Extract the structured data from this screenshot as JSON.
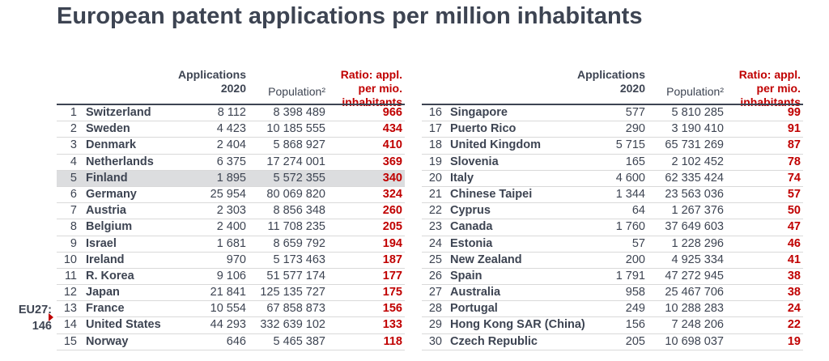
{
  "title": "European patent applications per million inhabitants",
  "headers": {
    "applications": "Applications",
    "year": "2020",
    "population": "Population²",
    "ratio_line1": "Ratio: appl.",
    "ratio_line2": "per mio.",
    "ratio_line3": "inhabitants"
  },
  "eu27": {
    "label": "EU27:",
    "value": "146"
  },
  "colors": {
    "accent": "#c00000",
    "text": "#3d4452",
    "highlight": "#dcdddf"
  },
  "left_rows": [
    {
      "rank": "1",
      "country": "Switzerland",
      "applications": "8 112",
      "population": "8 398 489",
      "ratio": "966"
    },
    {
      "rank": "2",
      "country": "Sweden",
      "applications": "4 423",
      "population": "10 185 555",
      "ratio": "434"
    },
    {
      "rank": "3",
      "country": "Denmark",
      "applications": "2 404",
      "population": "5 868 927",
      "ratio": "410"
    },
    {
      "rank": "4",
      "country": "Netherlands",
      "applications": "6 375",
      "population": "17 274 001",
      "ratio": "369"
    },
    {
      "rank": "5",
      "country": "Finland",
      "applications": "1 895",
      "population": "5 572 355",
      "ratio": "340",
      "highlight": true
    },
    {
      "rank": "6",
      "country": "Germany",
      "applications": "25 954",
      "population": "80 069 820",
      "ratio": "324"
    },
    {
      "rank": "7",
      "country": "Austria",
      "applications": "2 303",
      "population": "8 856 348",
      "ratio": "260"
    },
    {
      "rank": "8",
      "country": "Belgium",
      "applications": "2 400",
      "population": "11 708 235",
      "ratio": "205"
    },
    {
      "rank": "9",
      "country": "Israel",
      "applications": "1 681",
      "population": "8 659 792",
      "ratio": "194"
    },
    {
      "rank": "10",
      "country": "Ireland",
      "applications": "970",
      "population": "5 173 463",
      "ratio": "187"
    },
    {
      "rank": "11",
      "country": "R. Korea",
      "applications": "9 106",
      "population": "51 577 174",
      "ratio": "177"
    },
    {
      "rank": "12",
      "country": "Japan",
      "applications": "21 841",
      "population": "125 135 727",
      "ratio": "175"
    },
    {
      "rank": "13",
      "country": "France",
      "applications": "10 554",
      "population": "67 858 873",
      "ratio": "156"
    },
    {
      "rank": "14",
      "country": "United States",
      "applications": "44 293",
      "population": "332 639 102",
      "ratio": "133"
    },
    {
      "rank": "15",
      "country": "Norway",
      "applications": "646",
      "population": "5 465 387",
      "ratio": "118"
    }
  ],
  "right_rows": [
    {
      "rank": "16",
      "country": "Singapore",
      "applications": "577",
      "population": "5 810 285",
      "ratio": "99"
    },
    {
      "rank": "17",
      "country": "Puerto Rico",
      "applications": "290",
      "population": "3 190 410",
      "ratio": "91"
    },
    {
      "rank": "18",
      "country": "United Kingdom",
      "applications": "5 715",
      "population": "65 731 269",
      "ratio": "87"
    },
    {
      "rank": "19",
      "country": "Slovenia",
      "applications": "165",
      "population": "2 102 452",
      "ratio": "78"
    },
    {
      "rank": "20",
      "country": "Italy",
      "applications": "4 600",
      "population": "62 335 424",
      "ratio": "74"
    },
    {
      "rank": "21",
      "country": "Chinese Taipei",
      "applications": "1 344",
      "population": "23 563 036",
      "ratio": "57"
    },
    {
      "rank": "22",
      "country": "Cyprus",
      "applications": "64",
      "population": "1 267 376",
      "ratio": "50"
    },
    {
      "rank": "23",
      "country": "Canada",
      "applications": "1 760",
      "population": "37 649 603",
      "ratio": "47"
    },
    {
      "rank": "24",
      "country": "Estonia",
      "applications": "57",
      "population": "1 228 296",
      "ratio": "46"
    },
    {
      "rank": "25",
      "country": "New Zealand",
      "applications": "200",
      "population": "4 925 334",
      "ratio": "41"
    },
    {
      "rank": "26",
      "country": "Spain",
      "applications": "1 791",
      "population": "47 272 945",
      "ratio": "38"
    },
    {
      "rank": "27",
      "country": "Australia",
      "applications": "958",
      "population": "25 467 706",
      "ratio": "38"
    },
    {
      "rank": "28",
      "country": "Portugal",
      "applications": "249",
      "population": "10 288 283",
      "ratio": "24"
    },
    {
      "rank": "29",
      "country": "Hong Kong SAR (China)",
      "applications": "156",
      "population": "7 248 206",
      "ratio": "22"
    },
    {
      "rank": "30",
      "country": "Czech Republic",
      "applications": "205",
      "population": "10 698 037",
      "ratio": "19"
    }
  ]
}
